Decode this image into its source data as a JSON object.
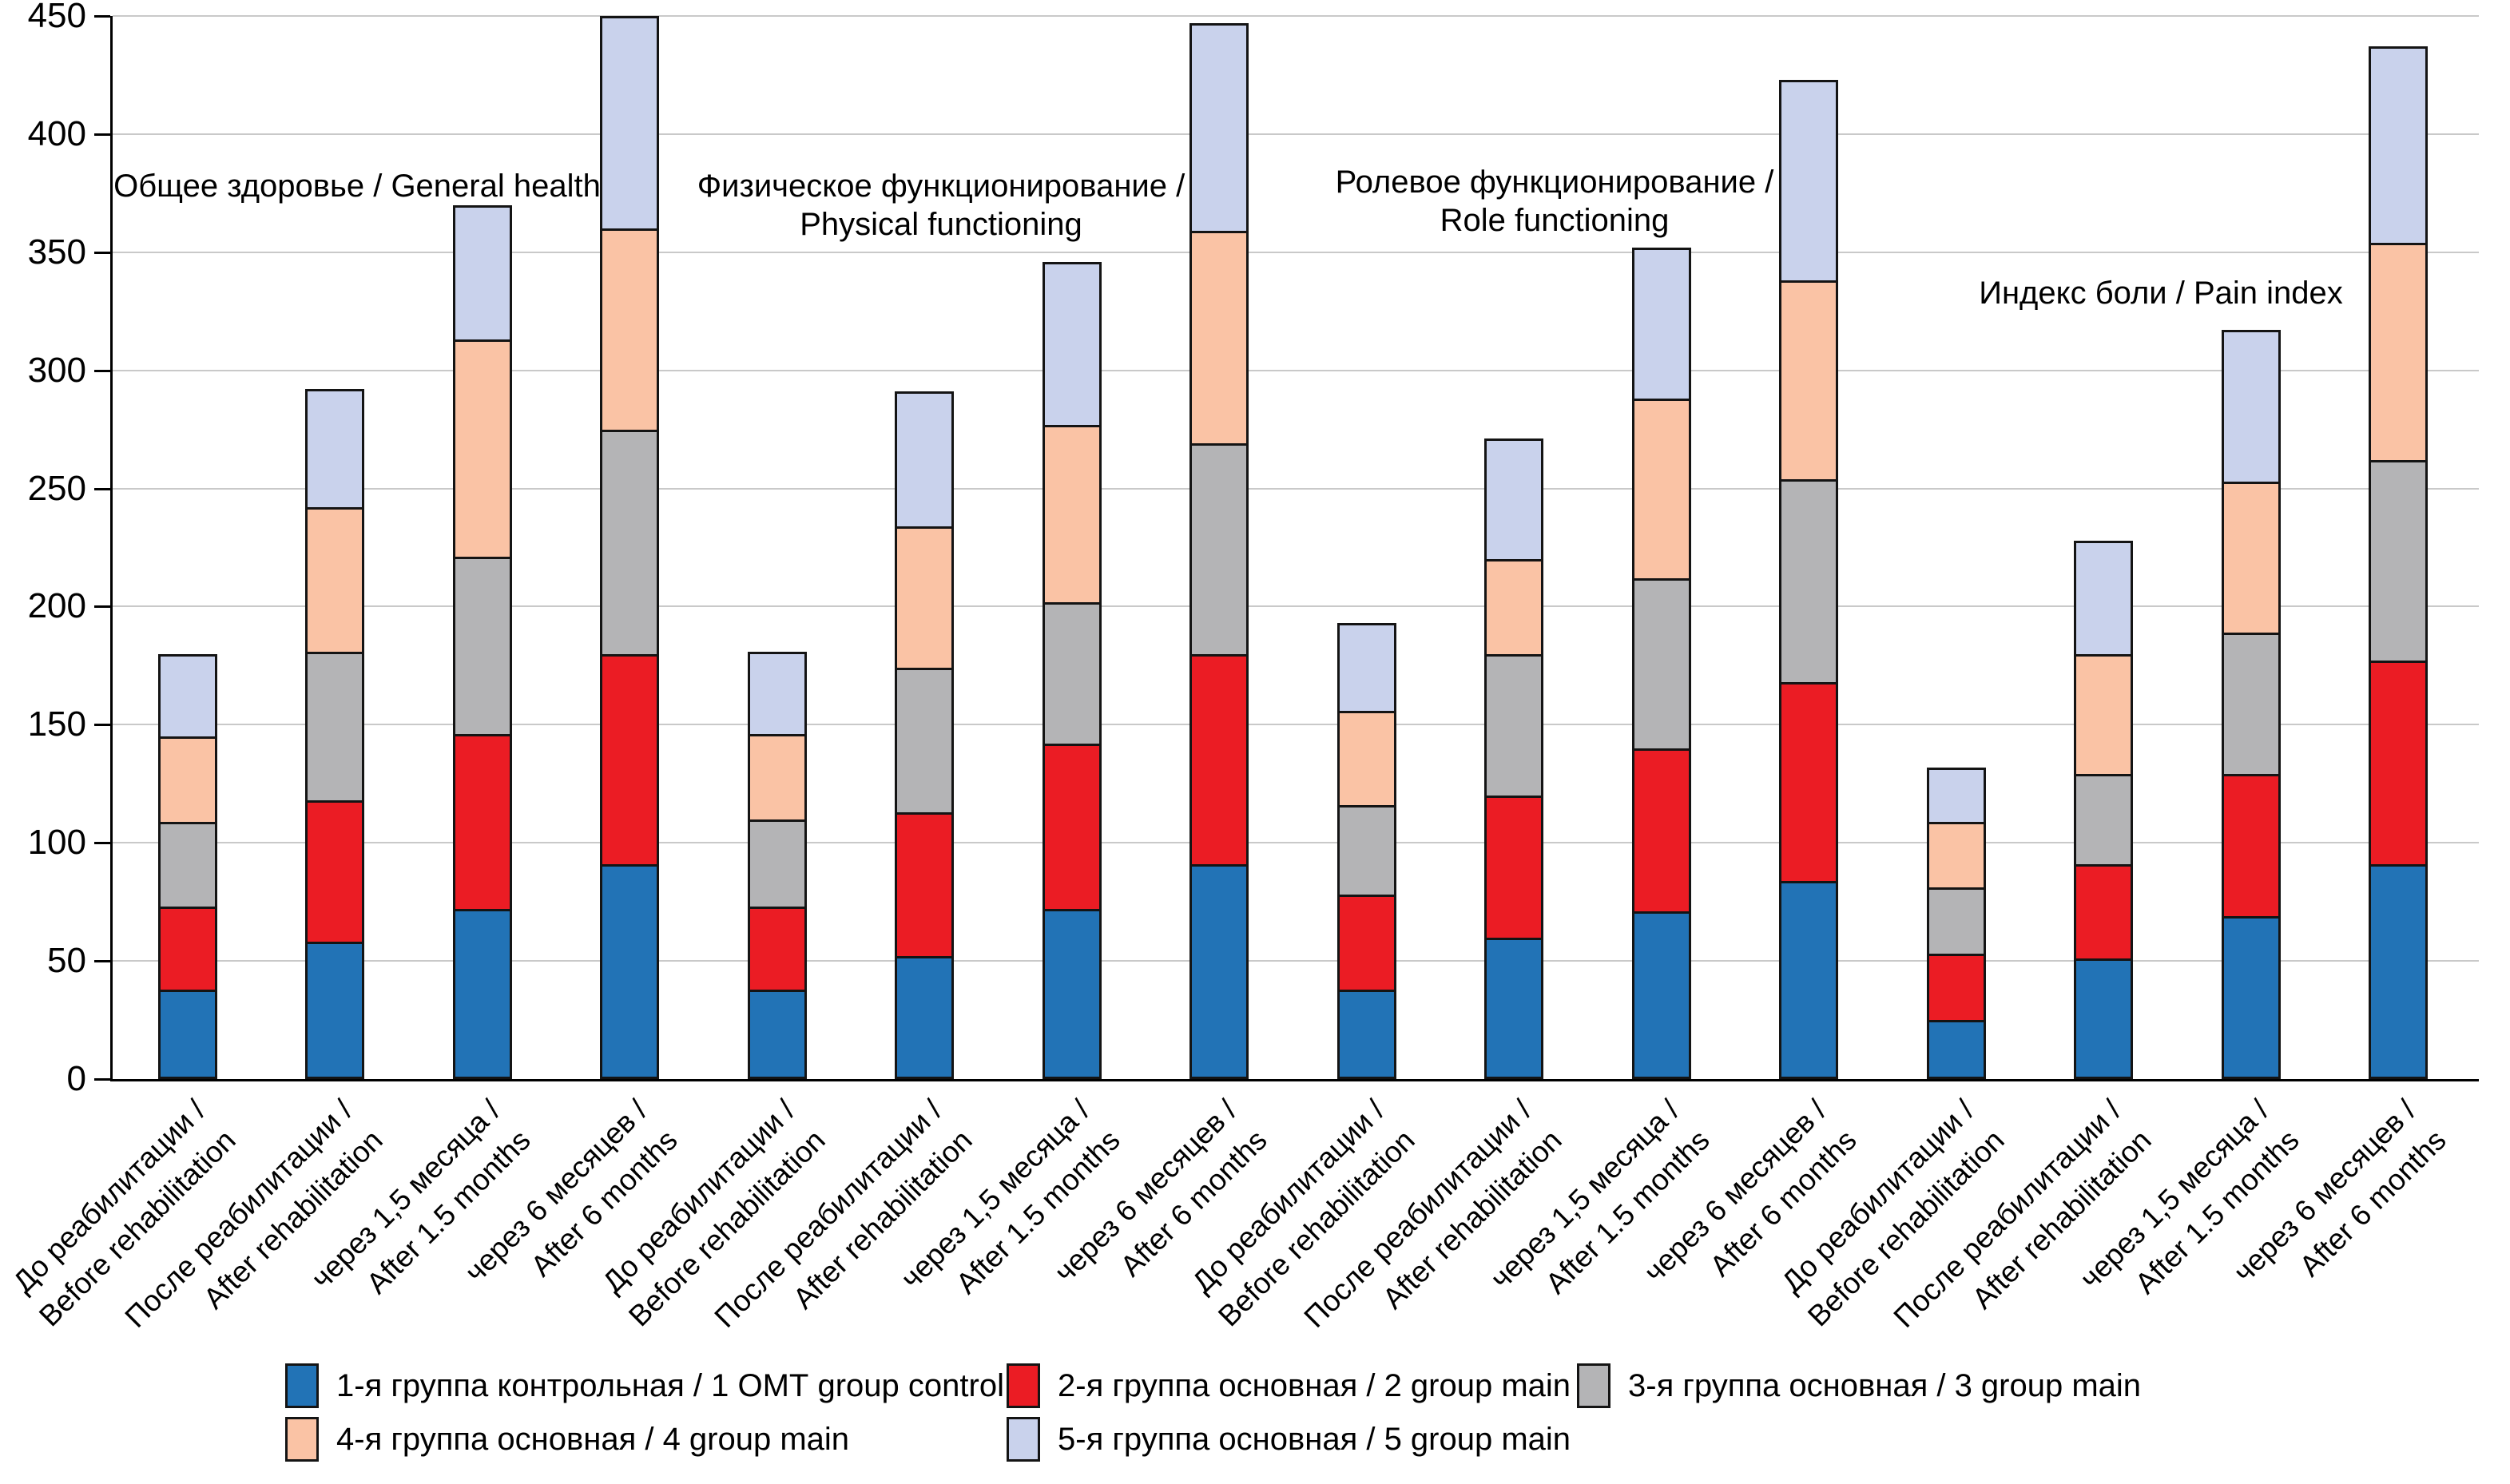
{
  "chart_data": {
    "type": "bar",
    "stacked": true,
    "title": "",
    "xlabel": "",
    "ylabel": "",
    "ylim": [
      0,
      450
    ],
    "yticks": [
      0,
      50,
      100,
      150,
      200,
      250,
      300,
      350,
      400,
      450
    ],
    "grid": true,
    "legend_position": "bottom",
    "group_titles": [
      {
        "lines": [
          "Общее здоровье / General health"
        ],
        "x": 444,
        "y": 233
      },
      {
        "lines": [
          "Физическое функционирование /",
          "Physical functioning"
        ],
        "x": 1175,
        "y": 257
      },
      {
        "lines": [
          "Ролевое функционирование /",
          "Role functioning"
        ],
        "x": 1943,
        "y": 252
      },
      {
        "lines": [
          "Индекс боли / Pain index"
        ],
        "x": 2702,
        "y": 367
      }
    ],
    "categories": [
      {
        "ru": "До реабилитации /",
        "en": "Before rehabilitation"
      },
      {
        "ru": "После реабилитации /",
        "en": "After rehabilitation"
      },
      {
        "ru": "через 1,5 месяца /",
        "en": "After 1.5 months"
      },
      {
        "ru": "через 6 месяцев /",
        "en": "After 6 months"
      },
      {
        "ru": "До реабилитации /",
        "en": "Before rehabilitation"
      },
      {
        "ru": "После реабилитации /",
        "en": "After rehabilitation"
      },
      {
        "ru": "через 1,5 месяца /",
        "en": "After 1.5 months"
      },
      {
        "ru": "через 6 месяцев /",
        "en": "After 6 months"
      },
      {
        "ru": "До реабилитации /",
        "en": "Before rehabilitation"
      },
      {
        "ru": "После реабилитации /",
        "en": "After rehabilitation"
      },
      {
        "ru": "через 1,5 месяца /",
        "en": "After 1.5 months"
      },
      {
        "ru": "через 6 месяцев /",
        "en": "After 6 months"
      },
      {
        "ru": "До реабилитации /",
        "en": "Before rehabilitation"
      },
      {
        "ru": "После реабилитации /",
        "en": "After rehabilitation"
      },
      {
        "ru": "через 1,5 месяца /",
        "en": "After 1.5 months"
      },
      {
        "ru": "через 6 месяцев /",
        "en": "After 6 months"
      }
    ],
    "series": [
      {
        "name": "1-я группа контрольная / 1 ОМТ group control",
        "color": "#2273b6",
        "values": [
          37,
          57,
          71,
          90,
          37,
          51,
          71,
          90,
          37,
          59,
          70,
          83,
          24,
          50,
          68,
          90
        ]
      },
      {
        "name": "2-я группа основная / 2 group main",
        "color": "#eb1c24",
        "values": [
          35,
          60,
          74,
          89,
          35,
          61,
          70,
          89,
          40,
          60,
          69,
          84,
          28,
          40,
          60,
          86
        ]
      },
      {
        "name": "3-я группа основная / 3 group main",
        "color": "#b4b4b6",
        "values": [
          36,
          63,
          75,
          95,
          37,
          61,
          60,
          89,
          38,
          60,
          72,
          86,
          28,
          38,
          60,
          85
        ]
      },
      {
        "name": "4-я группа основная / 4 group main",
        "color": "#fac3a5",
        "values": [
          36,
          61,
          92,
          85,
          36,
          60,
          75,
          90,
          40,
          40,
          76,
          84,
          28,
          51,
          64,
          92
        ]
      },
      {
        "name": "5-я группа основная / 5 group main",
        "color": "#c9d2ec",
        "values": [
          36,
          51,
          58,
          91,
          36,
          58,
          70,
          89,
          38,
          52,
          65,
          86,
          24,
          49,
          65,
          84
        ]
      }
    ],
    "bar_totals": [
      180,
      292,
      370,
      450,
      181,
      291,
      346,
      447,
      193,
      271,
      352,
      423,
      132,
      228,
      317,
      437
    ]
  },
  "legend_rows": [
    {
      "y": 1706,
      "items": [
        {
          "series": 0,
          "x": 357
        },
        {
          "series": 1,
          "x": 1260
        },
        {
          "series": 2,
          "x": 1974
        }
      ]
    },
    {
      "y": 1773,
      "items": [
        {
          "series": 3,
          "x": 357
        },
        {
          "series": 4,
          "x": 1260
        }
      ]
    }
  ],
  "style": {
    "grid_color": "#c9c9c9",
    "axis_color": "#000000",
    "segment_border_color": "#141414",
    "background": "#ffffff"
  }
}
